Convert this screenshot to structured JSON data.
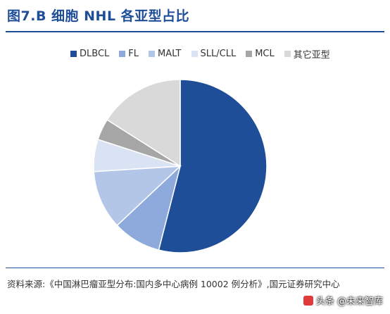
{
  "title": "图7.B 细胞 NHL 各亚型占比",
  "source": "资料来源:《中国淋巴瘤亚型分布:国内多中心病例 10002 例分析》,国元证券研究中心",
  "watermark": "头条 @未来智库",
  "chart_data": {
    "type": "pie",
    "title": "图7.B 细胞 NHL 各亚型占比",
    "legend_position": "top",
    "start_angle_deg": 0,
    "direction": "clockwise",
    "slices": [
      {
        "label": "DLBCL",
        "value": 54,
        "color": "#1f4e99"
      },
      {
        "label": "FL",
        "value": 9,
        "color": "#8ea9db"
      },
      {
        "label": "MALT",
        "value": 11,
        "color": "#b4c6e7"
      },
      {
        "label": "SLL/CLL",
        "value": 6,
        "color": "#dae3f3"
      },
      {
        "label": "MCL",
        "value": 4,
        "color": "#a6a6a6"
      },
      {
        "label": "其它亚型",
        "value": 16,
        "color": "#d9d9d9"
      }
    ]
  }
}
